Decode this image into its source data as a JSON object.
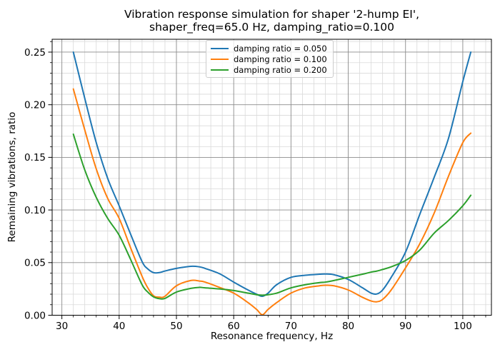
{
  "figure": {
    "title_line1": "Vibration response simulation for shaper '2-hump EI',",
    "title_line2": "shaper_freq=65.0 Hz, damping_ratio=0.100"
  },
  "chart_data": {
    "type": "line",
    "title": "Vibration response simulation for shaper '2-hump EI', shaper_freq=65.0 Hz, damping_ratio=0.100",
    "xlabel": "Resonance frequency, Hz",
    "ylabel": "Remaining vibrations, ratio",
    "xlim": [
      28.3,
      105.0
    ],
    "ylim": [
      0.0,
      0.2622
    ],
    "x_major_ticks": [
      30,
      40,
      50,
      60,
      70,
      80,
      90,
      100
    ],
    "y_major_ticks": [
      0.0,
      0.05,
      0.1,
      0.15,
      0.2,
      0.25
    ],
    "x_minor_step": 2,
    "y_minor_step": 0.01,
    "grid": {
      "major": true,
      "minor": true,
      "major_color": "#8b8b8b",
      "minor_color": "#d9d9d9"
    },
    "legend_position": "upper center",
    "x": [
      32,
      34,
      36,
      38,
      40,
      42,
      44,
      45,
      46,
      47,
      48,
      50,
      52.5,
      54,
      55,
      57.5,
      60,
      62.5,
      64,
      65,
      66,
      67.5,
      70,
      72.5,
      75,
      76,
      77.5,
      80,
      82.5,
      84,
      85,
      86,
      87.5,
      90,
      92.5,
      95,
      97.5,
      100,
      101.4
    ],
    "series": [
      {
        "name": "damping ratio = 0.050",
        "color": "#1f77b4",
        "values": [
          0.25,
          0.206,
          0.164,
          0.13,
          0.104,
          0.077,
          0.051,
          0.044,
          0.0405,
          0.0405,
          0.042,
          0.0445,
          0.0465,
          0.046,
          0.0445,
          0.0395,
          0.0315,
          0.024,
          0.02,
          0.018,
          0.021,
          0.029,
          0.036,
          0.038,
          0.039,
          0.0392,
          0.0385,
          0.034,
          0.026,
          0.021,
          0.0202,
          0.024,
          0.036,
          0.06,
          0.096,
          0.131,
          0.168,
          0.222,
          0.25
        ]
      },
      {
        "name": "damping ratio = 0.100",
        "color": "#ff7f0e",
        "values": [
          0.215,
          0.176,
          0.139,
          0.111,
          0.092,
          0.064,
          0.037,
          0.026,
          0.0185,
          0.0172,
          0.018,
          0.028,
          0.033,
          0.0325,
          0.0315,
          0.0265,
          0.021,
          0.012,
          0.0055,
          0.0004,
          0.0055,
          0.012,
          0.021,
          0.026,
          0.028,
          0.0285,
          0.028,
          0.024,
          0.017,
          0.0135,
          0.0128,
          0.015,
          0.024,
          0.045,
          0.068,
          0.097,
          0.132,
          0.164,
          0.173
        ]
      },
      {
        "name": "damping ratio = 0.200",
        "color": "#2ca02c",
        "values": [
          0.172,
          0.138,
          0.112,
          0.092,
          0.076,
          0.053,
          0.029,
          0.022,
          0.0175,
          0.0158,
          0.016,
          0.022,
          0.0255,
          0.0265,
          0.026,
          0.025,
          0.0235,
          0.021,
          0.0195,
          0.019,
          0.0195,
          0.021,
          0.026,
          0.029,
          0.031,
          0.0315,
          0.033,
          0.036,
          0.039,
          0.041,
          0.042,
          0.0435,
          0.046,
          0.052,
          0.062,
          0.078,
          0.09,
          0.104,
          0.114
        ]
      }
    ]
  }
}
